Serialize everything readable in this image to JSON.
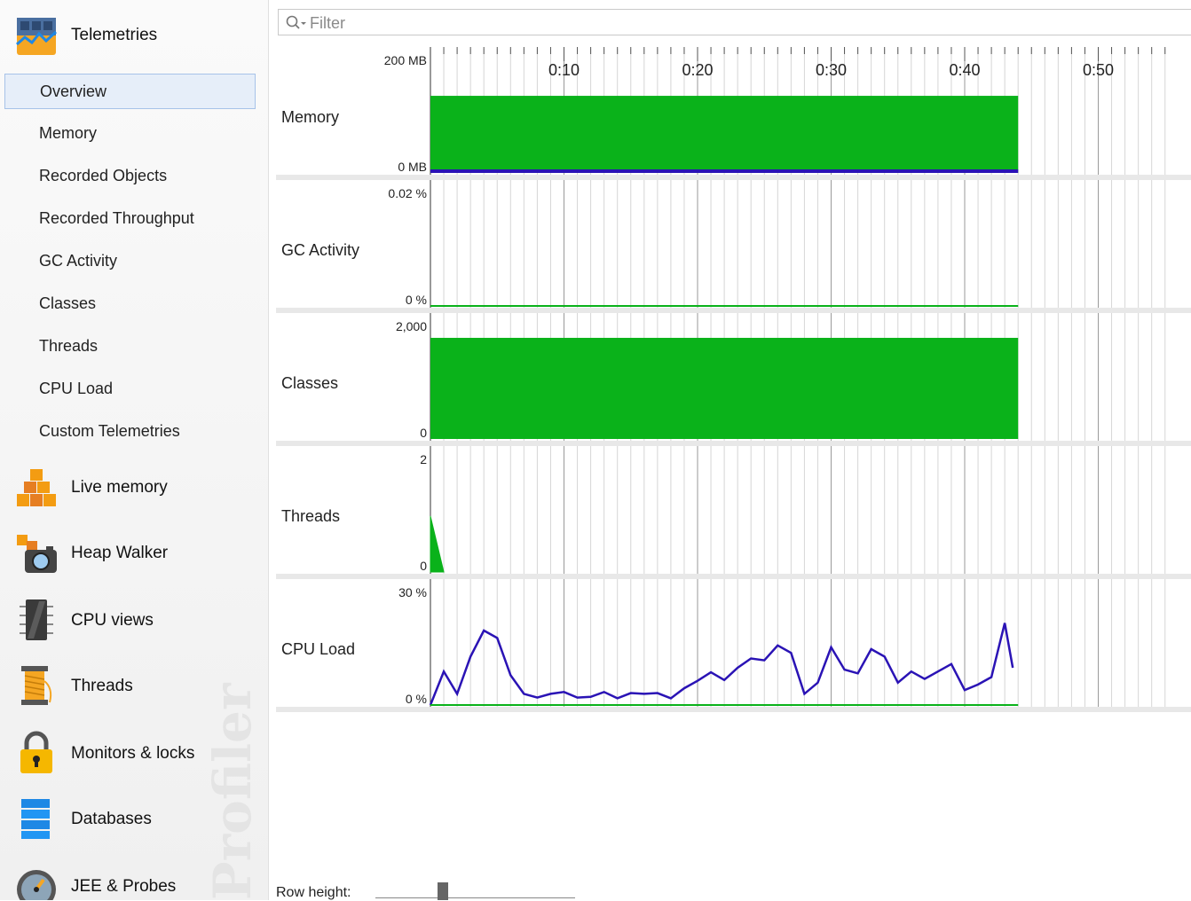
{
  "sidebar": {
    "telemetries": "Telemetries",
    "items": [
      {
        "label": "Overview"
      },
      {
        "label": "Memory"
      },
      {
        "label": "Recorded Objects"
      },
      {
        "label": "Recorded Throughput"
      },
      {
        "label": "GC Activity"
      },
      {
        "label": "Classes"
      },
      {
        "label": "Threads"
      },
      {
        "label": "CPU Load"
      },
      {
        "label": "Custom Telemetries"
      }
    ],
    "selected_index": 0,
    "sections": [
      {
        "label": "Live memory"
      },
      {
        "label": "Heap Walker"
      },
      {
        "label": "CPU views"
      },
      {
        "label": "Threads"
      },
      {
        "label": "Monitors & locks"
      },
      {
        "label": "Databases"
      },
      {
        "label": "JEE & Probes"
      }
    ],
    "watermark": "Profiler"
  },
  "filter": {
    "placeholder": "Filter"
  },
  "footer": {
    "row_height_label": "Row height:"
  },
  "colors": {
    "fill_green": "#0ab21a",
    "line_blue": "#2a13b5",
    "selected_bg": "#e6eef9"
  },
  "chart_data": {
    "type": "area",
    "time_ticks": [
      "0:10",
      "0:20",
      "0:30",
      "0:40",
      "0:50"
    ],
    "x_unit": "seconds",
    "xlim": [
      0,
      55
    ],
    "rows": [
      {
        "label": "Memory",
        "top_label": "200 MB",
        "bottom_label": "0 MB",
        "ylim": [
          0,
          200
        ],
        "series": [
          {
            "values": [
              [
                0,
                138
              ],
              [
                44,
                138
              ]
            ]
          },
          {
            "values": [
              [
                0,
                0
              ],
              [
                44,
                0
              ]
            ]
          }
        ]
      },
      {
        "label": "GC Activity",
        "top_label": "0.02 %",
        "bottom_label": "0 %",
        "ylim": [
          0,
          0.02
        ],
        "series": [
          {
            "values": [
              [
                0,
                0
              ],
              [
                44,
                0
              ]
            ]
          }
        ]
      },
      {
        "label": "Classes",
        "top_label": "2,000",
        "bottom_label": "0",
        "ylim": [
          0,
          2000
        ],
        "series": [
          {
            "values": [
              [
                0,
                1810
              ],
              [
                44,
                1810
              ]
            ]
          }
        ]
      },
      {
        "label": "Threads",
        "top_label": "2",
        "bottom_label": "0",
        "ylim": [
          0,
          2
        ],
        "series": [
          {
            "values": [
              [
                0,
                1
              ],
              [
                1,
                0
              ]
            ]
          }
        ]
      },
      {
        "label": "CPU Load",
        "top_label": "30 %",
        "bottom_label": "0 %",
        "ylim": [
          0,
          30
        ],
        "series": [
          {
            "values": [
              [
                0,
                0
              ],
              [
                1,
                9
              ],
              [
                2,
                3
              ],
              [
                3,
                13
              ],
              [
                4,
                20
              ],
              [
                5,
                18
              ],
              [
                6,
                8
              ],
              [
                7,
                3
              ],
              [
                8,
                2
              ],
              [
                9,
                3
              ],
              [
                10,
                3.5
              ],
              [
                11,
                2
              ],
              [
                12,
                2.2
              ],
              [
                13,
                3.5
              ],
              [
                14,
                1.8
              ],
              [
                15,
                3.2
              ],
              [
                16,
                3
              ],
              [
                17,
                3.2
              ],
              [
                18,
                1.8
              ],
              [
                19,
                4.5
              ],
              [
                20,
                6.5
              ],
              [
                21,
                8.8
              ],
              [
                22,
                6.7
              ],
              [
                23,
                10
              ],
              [
                24,
                12.5
              ],
              [
                25,
                12
              ],
              [
                26,
                16
              ],
              [
                27,
                14
              ],
              [
                28,
                3
              ],
              [
                29,
                6
              ],
              [
                30,
                15.5
              ],
              [
                31,
                9.5
              ],
              [
                32,
                8.5
              ],
              [
                33,
                15
              ],
              [
                34,
                13
              ],
              [
                35,
                6
              ],
              [
                36,
                9
              ],
              [
                37,
                7
              ],
              [
                38,
                9
              ],
              [
                39,
                11
              ],
              [
                40,
                4
              ],
              [
                41,
                5.5
              ],
              [
                42,
                7.5
              ],
              [
                43,
                22
              ],
              [
                43.6,
                10
              ]
            ]
          },
          {
            "values": [
              [
                0,
                0
              ],
              [
                44,
                0
              ]
            ]
          }
        ]
      }
    ]
  }
}
